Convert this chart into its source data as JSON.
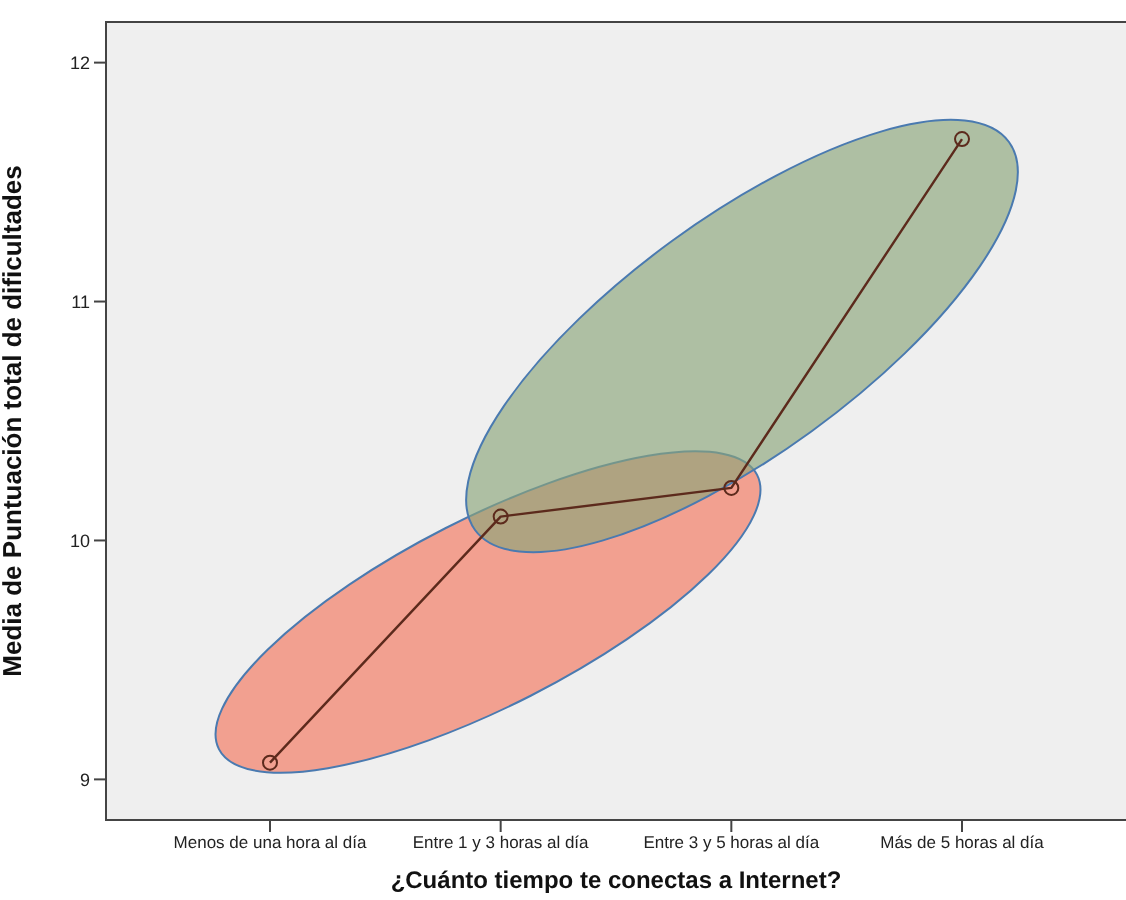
{
  "chart_data": {
    "type": "line",
    "xlabel": "¿Cuánto tiempo te conectas a Internet?",
    "ylabel": "Media de Puntuación total de dificultades",
    "categories": [
      "Menos de una hora al día",
      "Entre 1 y 3 horas al día",
      "Entre 3 y 5 horas al día",
      "Más de 5 horas al día"
    ],
    "values": [
      9.07,
      10.1,
      10.22,
      11.68
    ],
    "color": "#5c2a1c",
    "marker": "circle",
    "ylim": [
      8.83,
      12.17
    ],
    "yticks": [
      9,
      10,
      11,
      12
    ]
  }
}
